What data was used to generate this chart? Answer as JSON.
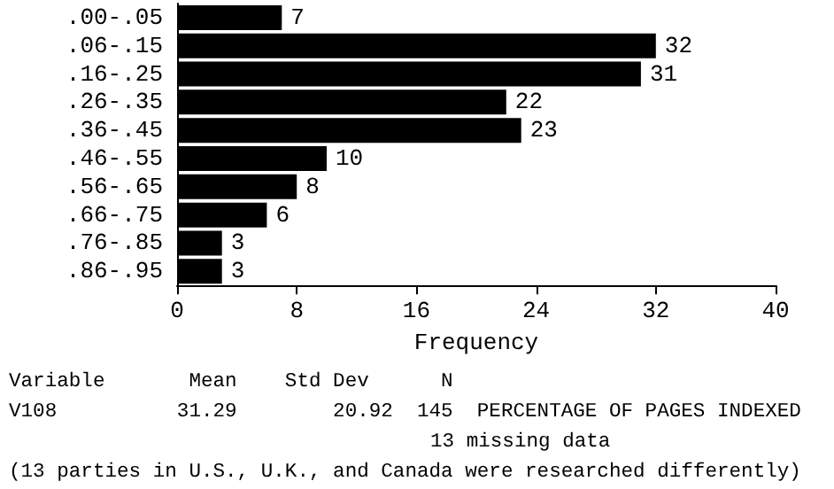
{
  "chart_data": {
    "type": "bar",
    "orientation": "horizontal",
    "xlabel": "Frequency",
    "categories": [
      ".00-.05",
      ".06-.15",
      ".16-.25",
      ".26-.35",
      ".36-.45",
      ".46-.55",
      ".56-.65",
      ".66-.75",
      ".76-.85",
      ".86-.95"
    ],
    "values": [
      7,
      32,
      31,
      22,
      23,
      10,
      8,
      6,
      3,
      3
    ],
    "color": "#000000",
    "xlim": [
      0,
      40
    ],
    "xticks": [
      0,
      8,
      16,
      24,
      32,
      40
    ],
    "grid": false,
    "data_labels": true,
    "annotations": [
      "Variable       Mean    Std Dev      N",
      "V108          31.29        20.92  145  PERCENTAGE OF PAGES INDEXED",
      "13 missing data",
      "(13 parties in U.S., U.K., and Canada were researched differently)"
    ]
  }
}
